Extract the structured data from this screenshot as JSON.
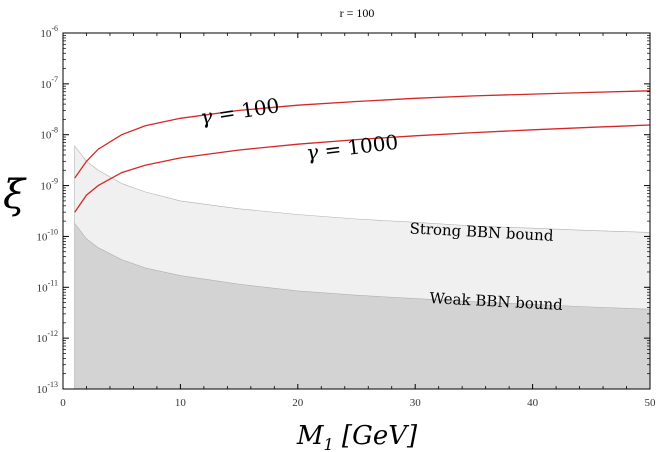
{
  "chart_data": {
    "type": "area",
    "title": "r = 100",
    "xlabel": "M_1 [GeV]",
    "xlabel_parts": {
      "symbol": "M",
      "subscript": "1",
      "unit": " [GeV]"
    },
    "ylabel": "ξ",
    "xlim": [
      0,
      50
    ],
    "ylim": [
      1e-13,
      1e-06
    ],
    "yscale": "log",
    "grid": false,
    "x_ticks": [
      0,
      10,
      20,
      30,
      40,
      50
    ],
    "y_ticks": [
      {
        "base": "10",
        "exp": "-13",
        "value": 1e-13
      },
      {
        "base": "10",
        "exp": "-12",
        "value": 1e-12
      },
      {
        "base": "10",
        "exp": "-11",
        "value": 1e-11
      },
      {
        "base": "10",
        "exp": "-10",
        "value": 1e-10
      },
      {
        "base": "10",
        "exp": "-9",
        "value": 1e-09
      },
      {
        "base": "10",
        "exp": "-8",
        "value": 1e-08
      },
      {
        "base": "10",
        "exp": "-7",
        "value": 1e-07
      },
      {
        "base": "10",
        "exp": "-6",
        "value": 1e-06
      }
    ],
    "series": [
      {
        "name": "γ = 100",
        "kind": "line",
        "color": "#d62728",
        "x": [
          1,
          2,
          3,
          5,
          7,
          10,
          15,
          20,
          25,
          30,
          35,
          40,
          45,
          50
        ],
        "y": [
          1.4e-09,
          3e-09,
          5.2e-09,
          1e-08,
          1.5e-08,
          2.1e-08,
          3e-08,
          3.8e-08,
          4.5e-08,
          5.2e-08,
          5.8e-08,
          6.3e-08,
          6.8e-08,
          7.3e-08
        ]
      },
      {
        "name": "γ = 1000",
        "kind": "line",
        "color": "#d62728",
        "x": [
          1,
          2,
          3,
          5,
          7,
          10,
          15,
          20,
          25,
          30,
          35,
          40,
          45,
          50
        ],
        "y": [
          3e-10,
          6.5e-10,
          1e-09,
          1.8e-09,
          2.5e-09,
          3.5e-09,
          5e-09,
          6.5e-09,
          8e-09,
          9.5e-09,
          1.1e-08,
          1.25e-08,
          1.4e-08,
          1.55e-08
        ]
      },
      {
        "name": "Strong BBN bound",
        "kind": "area",
        "color": "#f0f0f0",
        "x": [
          1,
          2,
          3,
          5,
          7,
          10,
          15,
          20,
          25,
          30,
          35,
          40,
          45,
          50
        ],
        "y": [
          6e-09,
          3e-09,
          2e-09,
          1.1e-09,
          7.5e-10,
          5e-10,
          3.5e-10,
          2.7e-10,
          2.2e-10,
          1.9e-10,
          1.6e-10,
          1.45e-10,
          1.3e-10,
          1.2e-10
        ]
      },
      {
        "name": "Weak BBN bound",
        "kind": "area",
        "color": "#d3d3d3",
        "x": [
          1,
          2,
          3,
          5,
          7,
          10,
          15,
          20,
          25,
          30,
          35,
          40,
          45,
          50
        ],
        "y": [
          1.8e-10,
          9e-11,
          6e-11,
          3.5e-11,
          2.4e-11,
          1.7e-11,
          1.15e-11,
          8.5e-12,
          7e-12,
          6e-12,
          5.2e-12,
          4.6e-12,
          4.1e-12,
          3.7e-12
        ]
      }
    ],
    "annotations": [
      {
        "text_prefix": "γ",
        "text_suffix": " = 100",
        "x": 11.8,
        "y": 1.6e-08,
        "rotate": -9,
        "size": 20
      },
      {
        "text_prefix": "γ",
        "text_suffix": " = 1000",
        "x": 20.8,
        "y": 3.2e-09,
        "rotate": -7,
        "size": 20
      },
      {
        "text": "Strong BBN bound",
        "x": 29.5,
        "y": 1.15e-10,
        "rotate": 3,
        "size": 15
      },
      {
        "text": "Weak BBN bound",
        "x": 31.2,
        "y": 4.9e-12,
        "rotate": 3,
        "size": 15
      }
    ]
  }
}
